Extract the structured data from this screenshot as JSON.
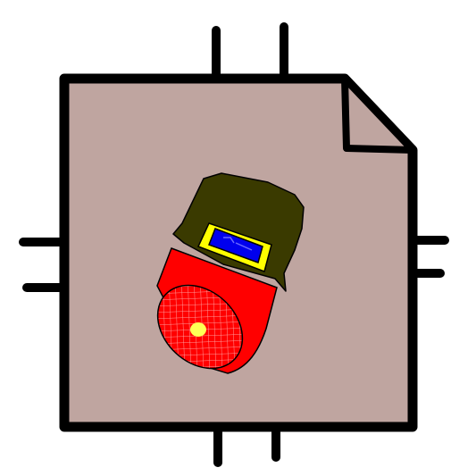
{
  "colors": {
    "background": "#ffffff",
    "outline": "#000000",
    "document_fill": "#bfa5a0",
    "hood": "#3a3a00",
    "lens_frame": "#ffff00",
    "lens_glass": "#0000ee",
    "body": "#ff0000",
    "body_mesh": "#ff9a9a",
    "indicator": "#ffff55"
  },
  "icons": {
    "document": "document-icon",
    "folded_corner": "folded-corner-icon",
    "device": "lamp-device-icon"
  }
}
